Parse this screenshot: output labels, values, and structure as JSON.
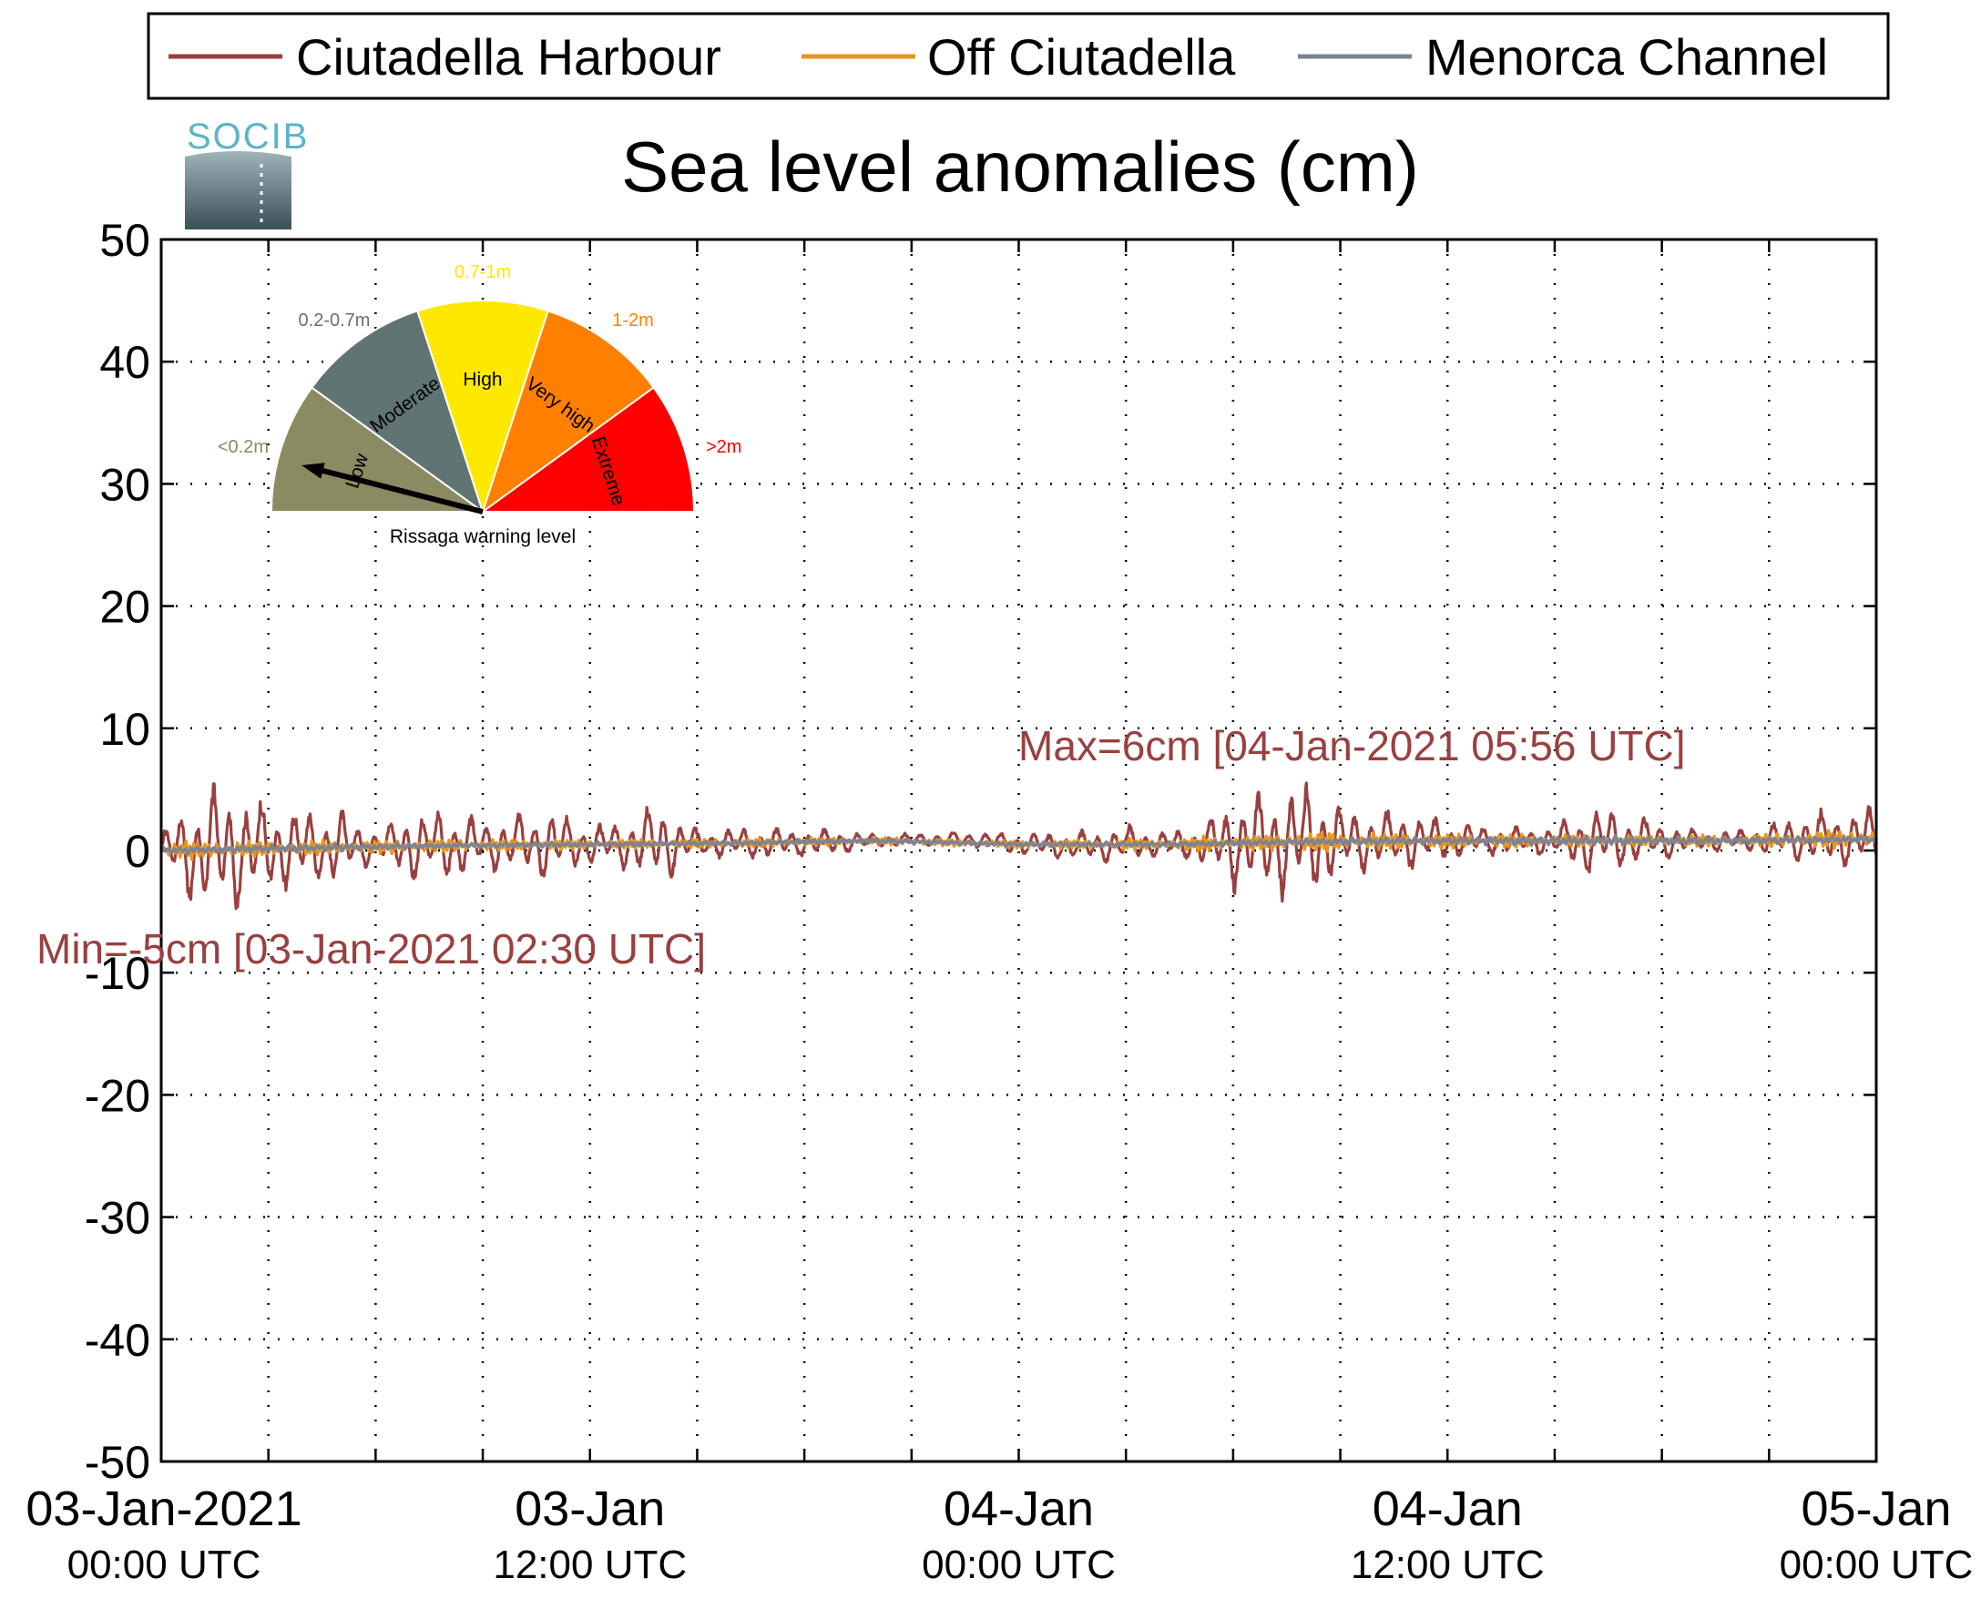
{
  "legend": {
    "items": [
      {
        "label": "Ciutadella Harbour",
        "color": "#9a3f3f"
      },
      {
        "label": "Off Ciutadella",
        "color": "#e8961e"
      },
      {
        "label": "Menorca Channel",
        "color": "#7a8397"
      }
    ]
  },
  "logo": {
    "text": "SOCIB"
  },
  "gauge": {
    "caption": "Rissaga warning level",
    "pointer_sector": "Low",
    "sectors": [
      {
        "name": "Low",
        "range": "<0.2m",
        "color": "#8a8a63"
      },
      {
        "name": "Moderate",
        "range": "0.2-0.7m",
        "color": "#5f7473"
      },
      {
        "name": "High",
        "range": "0.7-1m",
        "color": "#ffe800"
      },
      {
        "name": "Very high",
        "range": "1-2m",
        "color": "#ff8000"
      },
      {
        "name": "Extreme",
        "range": ">2m",
        "color": "#ff0000"
      }
    ]
  },
  "annotations": {
    "max": "Max=6cm [04-Jan-2021 05:56 UTC]",
    "min": "Min=-5cm [03-Jan-2021 02:30 UTC]"
  },
  "chart_data": {
    "type": "line",
    "title": "Sea level anomalies (cm)",
    "xlabel": "",
    "ylabel": "",
    "ylim": [
      -50,
      50
    ],
    "xlim": [
      "03-Jan-2021 00:00 UTC",
      "05-Jan-2021 00:00 UTC"
    ],
    "yticks": [
      -50,
      -40,
      -30,
      -20,
      -10,
      0,
      10,
      20,
      30,
      40,
      50
    ],
    "xticks": [
      {
        "line1": "03-Jan-2021",
        "line2": "00:00 UTC"
      },
      {
        "line1": "03-Jan",
        "line2": "12:00 UTC"
      },
      {
        "line1": "04-Jan",
        "line2": "00:00 UTC"
      },
      {
        "line1": "04-Jan",
        "line2": "12:00 UTC"
      },
      {
        "line1": "05-Jan",
        "line2": "00:00 UTC"
      }
    ],
    "grid": true,
    "legend_position": "top",
    "series": [
      {
        "name": "Ciutadella Harbour",
        "color": "#9a3f3f",
        "x_hours": [
          0,
          1,
          2,
          3,
          4,
          5,
          6,
          7,
          8,
          9,
          10,
          11,
          12,
          13,
          14,
          15,
          16,
          17,
          18,
          19,
          20,
          21,
          22,
          23,
          24,
          25,
          26,
          27,
          28,
          29,
          30,
          31,
          32,
          33,
          34,
          35,
          36,
          37,
          38,
          39,
          40,
          41,
          42,
          43,
          44,
          45,
          46,
          47,
          48
        ],
        "amplitude_cm": [
          1.5,
          4.5,
          5,
          3.5,
          3,
          2.8,
          1.2,
          2.8,
          2.8,
          2,
          2.2,
          2.8,
          1.5,
          2,
          3.2,
          1,
          1.2,
          1.2,
          1,
          1,
          0.5,
          0.5,
          0.5,
          0.6,
          0.8,
          1,
          1.2,
          1.5,
          1,
          1.3,
          3.5,
          4,
          4.5,
          2.8,
          2.2,
          2.2,
          1.5,
          1.2,
          1,
          1.2,
          2.8,
          2,
          1.5,
          0.8,
          0.8,
          1.2,
          2,
          2.2,
          2.5
        ],
        "mean_cm": [
          0,
          0,
          0,
          0.2,
          0.2,
          0.3,
          0.4,
          0.4,
          0.4,
          0.5,
          0.5,
          0.5,
          0.5,
          0.5,
          0.6,
          0.6,
          0.6,
          0.6,
          0.6,
          0.7,
          0.8,
          0.9,
          0.9,
          0.9,
          0.5,
          0.4,
          0.3,
          0.5,
          0.5,
          0.5,
          0.6,
          0.6,
          0.8,
          0.8,
          0.8,
          0.9,
          0.8,
          0.8,
          0.8,
          0.8,
          0.8,
          0.8,
          0.8,
          0.8,
          0.8,
          0.9,
          1,
          1,
          1
        ]
      },
      {
        "name": "Off Ciutadella",
        "color": "#e8961e",
        "x_hours": [
          0,
          4,
          8,
          12,
          16,
          20,
          24,
          28,
          32,
          36,
          40,
          44,
          48
        ],
        "amplitude_cm": [
          0.8,
          0.6,
          0.5,
          0.4,
          0.4,
          0.3,
          0.3,
          0.5,
          0.8,
          0.6,
          0.5,
          0.4,
          0.8
        ],
        "mean_cm": [
          0,
          0.2,
          0.4,
          0.5,
          0.6,
          0.8,
          0.5,
          0.5,
          0.7,
          0.8,
          0.8,
          0.8,
          1
        ]
      },
      {
        "name": "Menorca Channel",
        "color": "#7a8397",
        "x_hours": [
          0,
          4,
          8,
          12,
          16,
          20,
          24,
          28,
          32,
          36,
          40,
          44,
          48
        ],
        "amplitude_cm": [
          0.3,
          0.3,
          0.2,
          0.2,
          0.2,
          0.2,
          0.2,
          0.2,
          0.3,
          0.3,
          0.4,
          0.3,
          0.3
        ],
        "mean_cm": [
          0,
          0.2,
          0.4,
          0.5,
          0.6,
          0.8,
          0.5,
          0.5,
          0.7,
          0.8,
          0.8,
          0.8,
          0.9
        ]
      }
    ]
  }
}
